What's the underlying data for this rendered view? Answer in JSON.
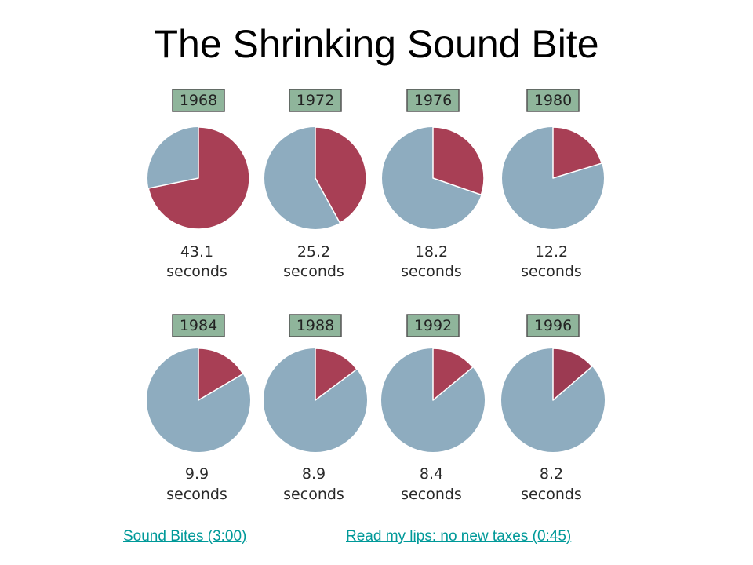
{
  "title": "The Shrinking Sound Bite",
  "links": [
    {
      "label": "Sound Bites (3:00)"
    },
    {
      "label": "Read my lips: no new taxes (0:45)"
    }
  ],
  "colors": {
    "slice": "#a83f55",
    "slice_1996": "#9c3a52",
    "remainder": "#8eacbf",
    "year_box_fill": "#8fb59b",
    "year_box_stroke": "#555555",
    "link": "#009999"
  },
  "chart_data": {
    "type": "pie",
    "unit": "seconds",
    "pies": [
      {
        "year": "1968",
        "value": "43.1",
        "fraction": 0.718
      },
      {
        "year": "1972",
        "value": "25.2",
        "fraction": 0.42
      },
      {
        "year": "1976",
        "value": "18.2",
        "fraction": 0.303
      },
      {
        "year": "1980",
        "value": "12.2",
        "fraction": 0.203
      },
      {
        "year": "1984",
        "value": "9.9",
        "fraction": 0.165
      },
      {
        "year": "1988",
        "value": "8.9",
        "fraction": 0.148
      },
      {
        "year": "1992",
        "value": "8.4",
        "fraction": 0.14
      },
      {
        "year": "1996",
        "value": "8.2",
        "fraction": 0.137
      }
    ]
  }
}
